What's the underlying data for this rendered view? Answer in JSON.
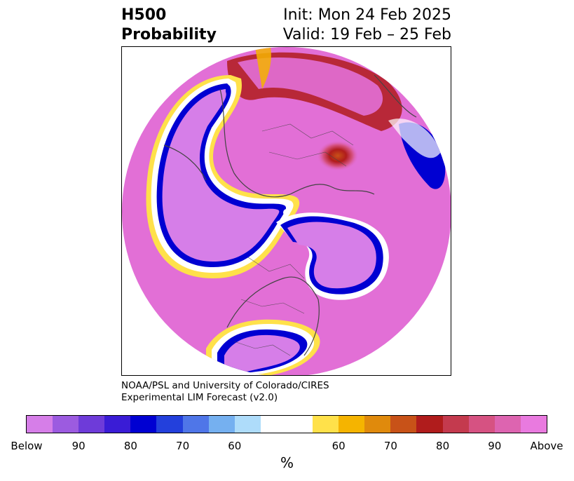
{
  "header": {
    "title_line1": "H500",
    "title_line2": "Probability",
    "init_text": "Init: Mon 24 Feb 2025",
    "valid_text": "Valid: 19 Feb – 25 Feb"
  },
  "credit": {
    "line1": "NOAA/PSL and University of Colorado/CIRES",
    "line2": "Experimental LIM Forecast (v2.0)"
  },
  "colorbar": {
    "unit_label": "%",
    "colors": [
      "#d67ee8",
      "#9c5be0",
      "#6e3bd9",
      "#3a1cd6",
      "#0000d2",
      "#2340dc",
      "#4f76e8",
      "#75b0f0",
      "#aedcfa",
      "#ffffff",
      "#ffe14a",
      "#f5b400",
      "#e08a0c",
      "#c85218",
      "#b01c1c",
      "#c43a4e",
      "#d65282",
      "#dd64b0",
      "#e97adf"
    ],
    "tick_labels": [
      "Below",
      "90",
      "80",
      "70",
      "60",
      "60",
      "70",
      "80",
      "90",
      "Above"
    ]
  },
  "map": {
    "palette": {
      "above": "#e26fd6",
      "above_mid": "#d65282",
      "red": "#b01c1c",
      "orange": "#e08a0c",
      "yellow": "#ffe14a",
      "below": "#d67ee8",
      "blue": "#0000d2",
      "coast": "#444444"
    }
  }
}
